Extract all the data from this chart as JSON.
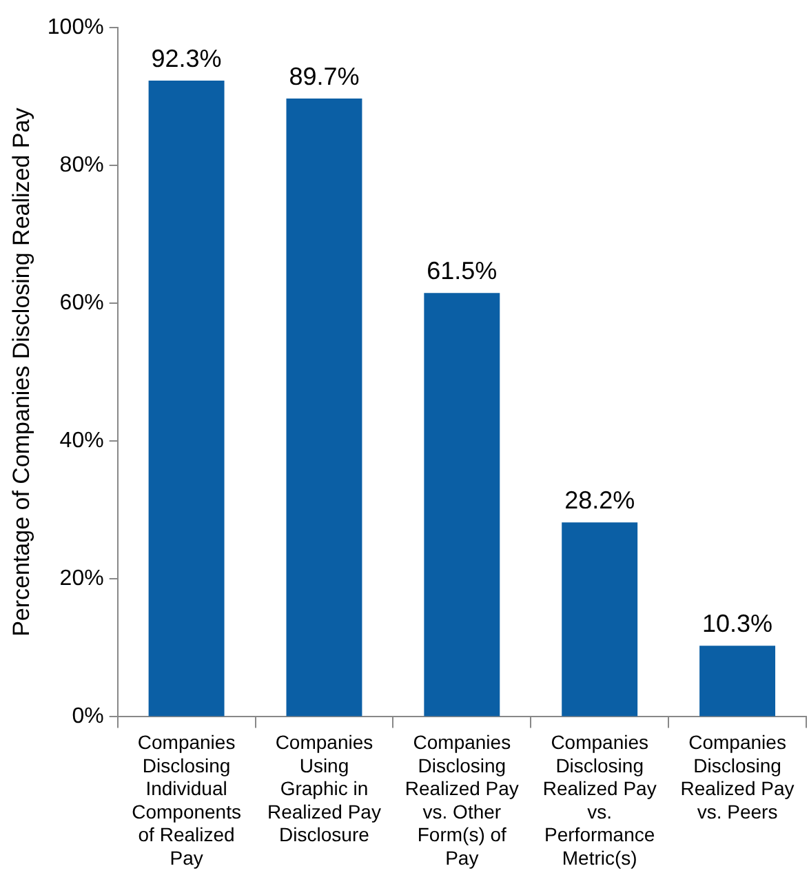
{
  "chart_data": {
    "type": "bar",
    "ylabel": "Percentage of Companies Disclosing Realized Pay",
    "categories": [
      "Companies Disclosing Individual Components of Realized Pay",
      "Companies Using Graphic in Realized Pay Disclosure",
      "Companies Disclosing Realized Pay vs. Other Form(s) of Pay",
      "Companies Disclosing Realized Pay vs. Performance Metric(s)",
      "Companies Disclosing Realized Pay vs. Peers"
    ],
    "values": [
      92.3,
      89.7,
      61.5,
      28.2,
      10.3
    ],
    "value_labels": [
      "92.3%",
      "89.7%",
      "61.5%",
      "28.2%",
      "10.3%"
    ],
    "color": "#0b5fa5",
    "ylim": [
      0,
      100
    ],
    "yticks": [
      {
        "value": 0,
        "label": "0%"
      },
      {
        "value": 20,
        "label": "20%"
      },
      {
        "value": 40,
        "label": "40%"
      },
      {
        "value": 60,
        "label": "60%"
      },
      {
        "value": 80,
        "label": "80%"
      },
      {
        "value": 100,
        "label": "100%"
      }
    ],
    "grid": false,
    "legend": false
  }
}
